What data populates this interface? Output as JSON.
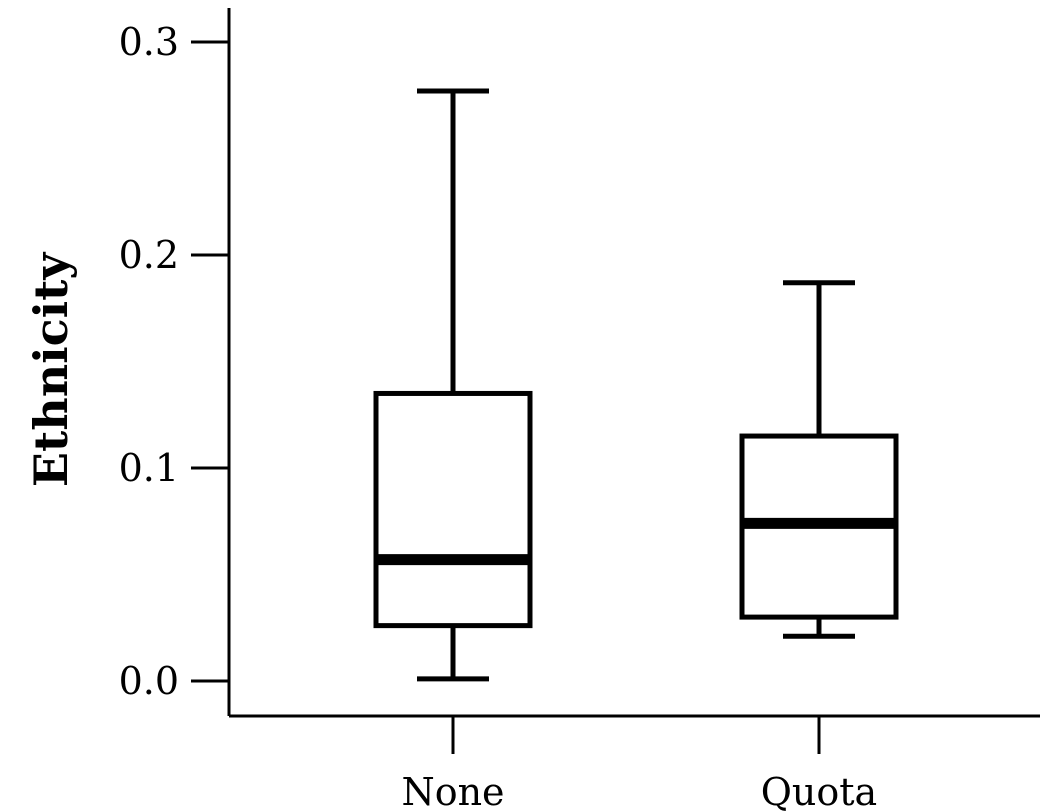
{
  "chart_data": {
    "type": "box",
    "title": "",
    "xlabel": "",
    "ylabel": "Ethnicity",
    "ylim": [
      0.0,
      0.3
    ],
    "yticks": [
      "0.0",
      "0.1",
      "0.2",
      "0.3"
    ],
    "categories": [
      "None",
      "Quota"
    ],
    "boxes": [
      {
        "category": "None",
        "whisker_low": 0.001,
        "q1": 0.026,
        "median": 0.057,
        "q3": 0.135,
        "whisker_high": 0.277
      },
      {
        "category": "Quota",
        "whisker_low": 0.021,
        "q1": 0.03,
        "median": 0.074,
        "q3": 0.115,
        "whisker_high": 0.187
      }
    ],
    "grid": false,
    "legend": "none",
    "colors": {
      "stroke": "#000000",
      "fill": "#ffffff"
    }
  }
}
